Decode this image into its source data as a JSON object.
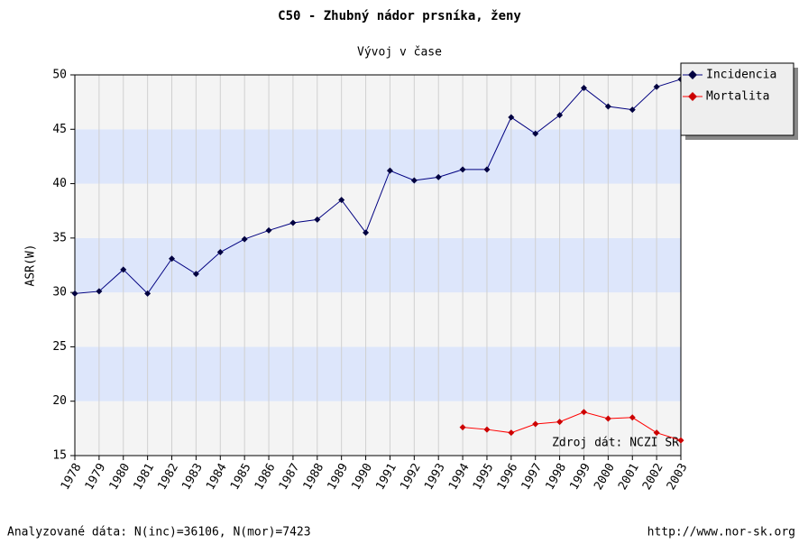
{
  "chart_data": {
    "type": "line",
    "title": "C50 - Zhubný nádor prsníka, ženy",
    "subtitle": "Vývoj v čase",
    "y_label": "ASR(W)",
    "annotation": "Zdroj dát: NCZI SR",
    "footer_left": "Analyzované dáta: N(inc)=36106, N(mor)=7423",
    "footer_right": "http://www.nor-sk.org",
    "categories": [
      "1978",
      "1979",
      "1980",
      "1981",
      "1982",
      "1983",
      "1984",
      "1985",
      "1986",
      "1987",
      "1988",
      "1989",
      "1990",
      "1991",
      "1992",
      "1993",
      "1994",
      "1995",
      "1996",
      "1997",
      "1998",
      "1999",
      "2000",
      "2001",
      "2002",
      "2003"
    ],
    "series": [
      {
        "name": "Incidencia",
        "color": "#000080",
        "marker_color": "#000040",
        "values": [
          29.9,
          30.1,
          32.1,
          29.9,
          33.1,
          31.7,
          33.7,
          34.9,
          35.7,
          36.4,
          36.7,
          38.5,
          35.5,
          41.2,
          40.3,
          40.6,
          41.3,
          41.3,
          46.1,
          44.6,
          46.3,
          48.8,
          47.1,
          46.8,
          48.9,
          49.6
        ]
      },
      {
        "name": "Mortalita",
        "color": "#ff0000",
        "marker_color": "#cc0000",
        "values": [
          null,
          null,
          null,
          null,
          null,
          null,
          null,
          null,
          null,
          null,
          null,
          null,
          null,
          null,
          null,
          null,
          17.6,
          17.4,
          17.1,
          17.9,
          18.1,
          19.0,
          18.4,
          18.5,
          17.1,
          16.4
        ]
      }
    ],
    "ylim": [
      15,
      50
    ],
    "yticks": [
      15,
      20,
      25,
      30,
      35,
      40,
      45,
      50
    ],
    "grid": true,
    "legend": "top-right"
  }
}
